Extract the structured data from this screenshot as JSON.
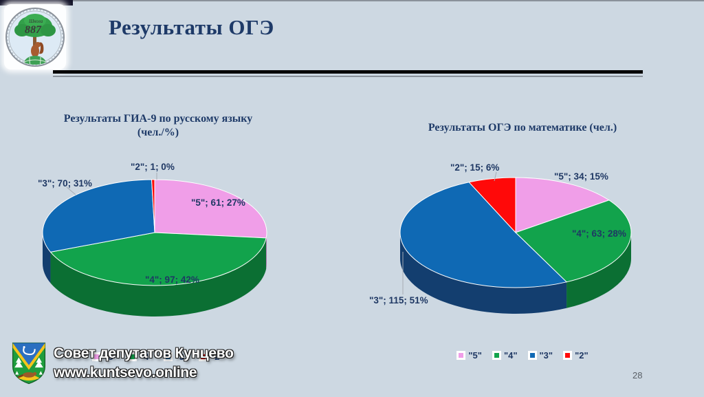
{
  "slide": {
    "title": "Результаты ОГЭ",
    "page_number": "28"
  },
  "logo": {
    "school_label": "Школа",
    "school_number": "887"
  },
  "watermark": {
    "line1": "Совет депутатов Кунцево",
    "line2": "www.kuntsevo.online"
  },
  "colors": {
    "background": "#CDD8E2",
    "title_navy": "#1E3A68",
    "label_navy": "#1F3864",
    "grade5_pink": "#F09EE8",
    "grade4_green": "#12A34C",
    "grade3_blue": "#0F69B4",
    "grade2_red": "#FF0909"
  },
  "chart_data": [
    {
      "type": "pie",
      "title": "Результаты ГИА-9 по русскому языку (чел./%)",
      "title_line1": "Результаты ГИА-9 по русскому языку",
      "title_line2": "(чел./%)",
      "legend_position": "bottom",
      "slices": [
        {
          "name": "\"5\"",
          "value": 61,
          "pct": "27%",
          "color": "#F09EE8",
          "wall": "#C876C0",
          "label": "\"5\"; 61; 27%"
        },
        {
          "name": "\"4\"",
          "value": 97,
          "pct": "42%",
          "color": "#12A34C",
          "wall": "#0B6F33",
          "label": "\"4\"; 97; 42%"
        },
        {
          "name": "\"3\"",
          "value": 70,
          "pct": "31%",
          "color": "#0F69B4",
          "wall": "#133E6F",
          "label": "\"3\"; 70; 31%"
        },
        {
          "name": "\"2\"",
          "value": 1,
          "pct": "0%",
          "color": "#FF0909",
          "wall": "#C00000",
          "label": "\"2\"; 1; 0%"
        }
      ]
    },
    {
      "type": "pie",
      "title": "Результаты ОГЭ по математике (чел.)",
      "title_line1": "Результаты ОГЭ по математике (чел.)",
      "title_line2": "",
      "legend_position": "bottom",
      "slices": [
        {
          "name": "\"5\"",
          "value": 34,
          "pct": "15%",
          "color": "#F09EE8",
          "wall": "#C876C0",
          "label": "\"5\"; 34; 15%"
        },
        {
          "name": "\"4\"",
          "value": 63,
          "pct": "28%",
          "color": "#12A34C",
          "wall": "#0B6F33",
          "label": "\"4\"; 63; 28%"
        },
        {
          "name": "\"3\"",
          "value": 115,
          "pct": "51%",
          "color": "#0F69B4",
          "wall": "#133E6F",
          "label": "\"3\"; 115; 51%"
        },
        {
          "name": "\"2\"",
          "value": 15,
          "pct": "6%",
          "color": "#FF0909",
          "wall": "#C00000",
          "label": "\"2\"; 15; 6%"
        }
      ]
    }
  ]
}
